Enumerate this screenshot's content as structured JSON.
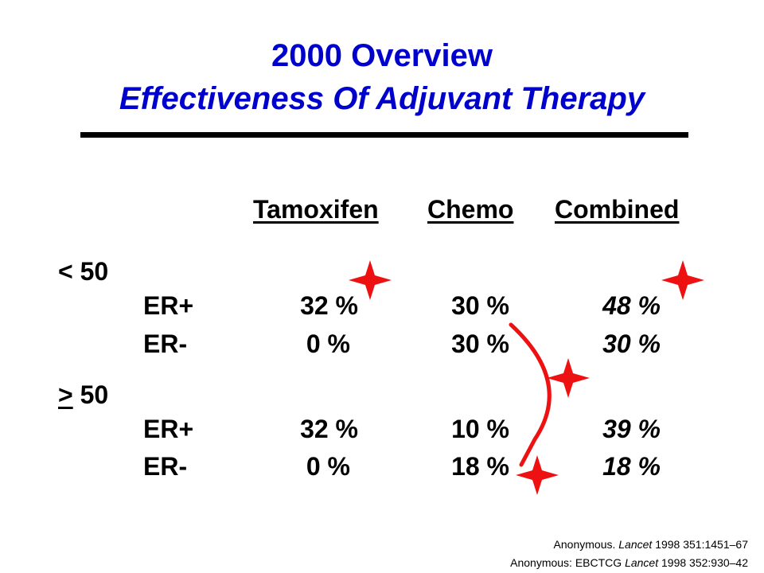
{
  "title": {
    "line1": "2000 Overview",
    "line2": "Effectiveness Of Adjuvant Therapy"
  },
  "colors": {
    "title": "#0000cc",
    "annotation": "#ee1111",
    "text": "#000000"
  },
  "table": {
    "headers": [
      "Tamoxifen",
      "Chemo",
      "Combined"
    ],
    "groups": [
      {
        "label_symbol": "<",
        "label_value": " 50",
        "rows": [
          {
            "label": "ER+",
            "tamoxifen": "32 %",
            "chemo": "30 %",
            "combined": "48 %"
          },
          {
            "label": "ER-",
            "tamoxifen": "0 %",
            "chemo": "30 %",
            "combined": "30 %"
          }
        ]
      },
      {
        "label_symbol": ">",
        "label_value": " 50",
        "rows": [
          {
            "label": "ER+",
            "tamoxifen": "32 %",
            "chemo": "10 %",
            "combined": "39 %"
          },
          {
            "label": "ER-",
            "tamoxifen": "0 %",
            "chemo": "18 %",
            "combined": "18 %"
          }
        ]
      }
    ]
  },
  "annotations": {
    "icon": "red-four-point-star-icon",
    "count": 4
  },
  "references": [
    {
      "pre": "Anonymous. ",
      "journal": "Lancet",
      "post": " 1998 351:1451–67"
    },
    {
      "pre": "Anonymous: EBCTCG ",
      "journal": "Lancet",
      "post": " 1998 352:930–42"
    }
  ]
}
